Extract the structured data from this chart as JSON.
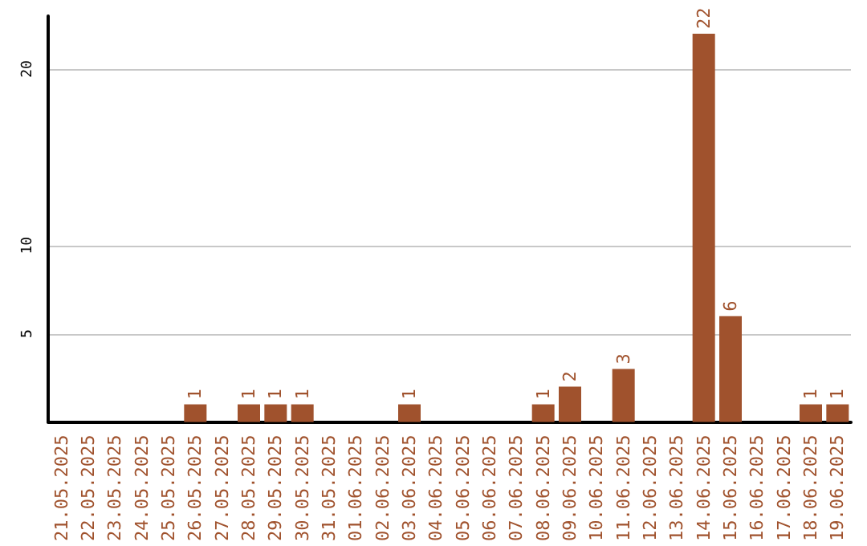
{
  "chart_data": {
    "type": "bar",
    "categories": [
      "21.05.2025",
      "22.05.2025",
      "23.05.2025",
      "24.05.2025",
      "25.05.2025",
      "26.05.2025",
      "27.05.2025",
      "28.05.2025",
      "29.05.2025",
      "30.05.2025",
      "31.05.2025",
      "01.06.2025",
      "02.06.2025",
      "03.06.2025",
      "04.06.2025",
      "05.06.2025",
      "06.06.2025",
      "07.06.2025",
      "08.06.2025",
      "09.06.2025",
      "10.06.2025",
      "11.06.2025",
      "12.06.2025",
      "13.06.2025",
      "14.06.2025",
      "15.06.2025",
      "16.06.2025",
      "17.06.2025",
      "18.06.2025",
      "19.06.2025"
    ],
    "values": [
      0,
      0,
      0,
      0,
      0,
      1,
      0,
      1,
      1,
      1,
      0,
      0,
      0,
      1,
      0,
      0,
      0,
      0,
      1,
      2,
      0,
      3,
      0,
      0,
      22,
      6,
      0,
      0,
      1,
      1
    ],
    "value_labels": [
      null,
      null,
      null,
      null,
      null,
      "1",
      null,
      "1",
      "1",
      "1",
      null,
      null,
      null,
      "1",
      null,
      null,
      null,
      null,
      "1",
      "2",
      null,
      "3",
      null,
      null,
      "22",
      "6",
      null,
      null,
      "1",
      "1"
    ],
    "color": "#a0522d",
    "ylim": [
      0,
      23
    ],
    "yticks": [
      5,
      10,
      20
    ],
    "grid": "y"
  }
}
